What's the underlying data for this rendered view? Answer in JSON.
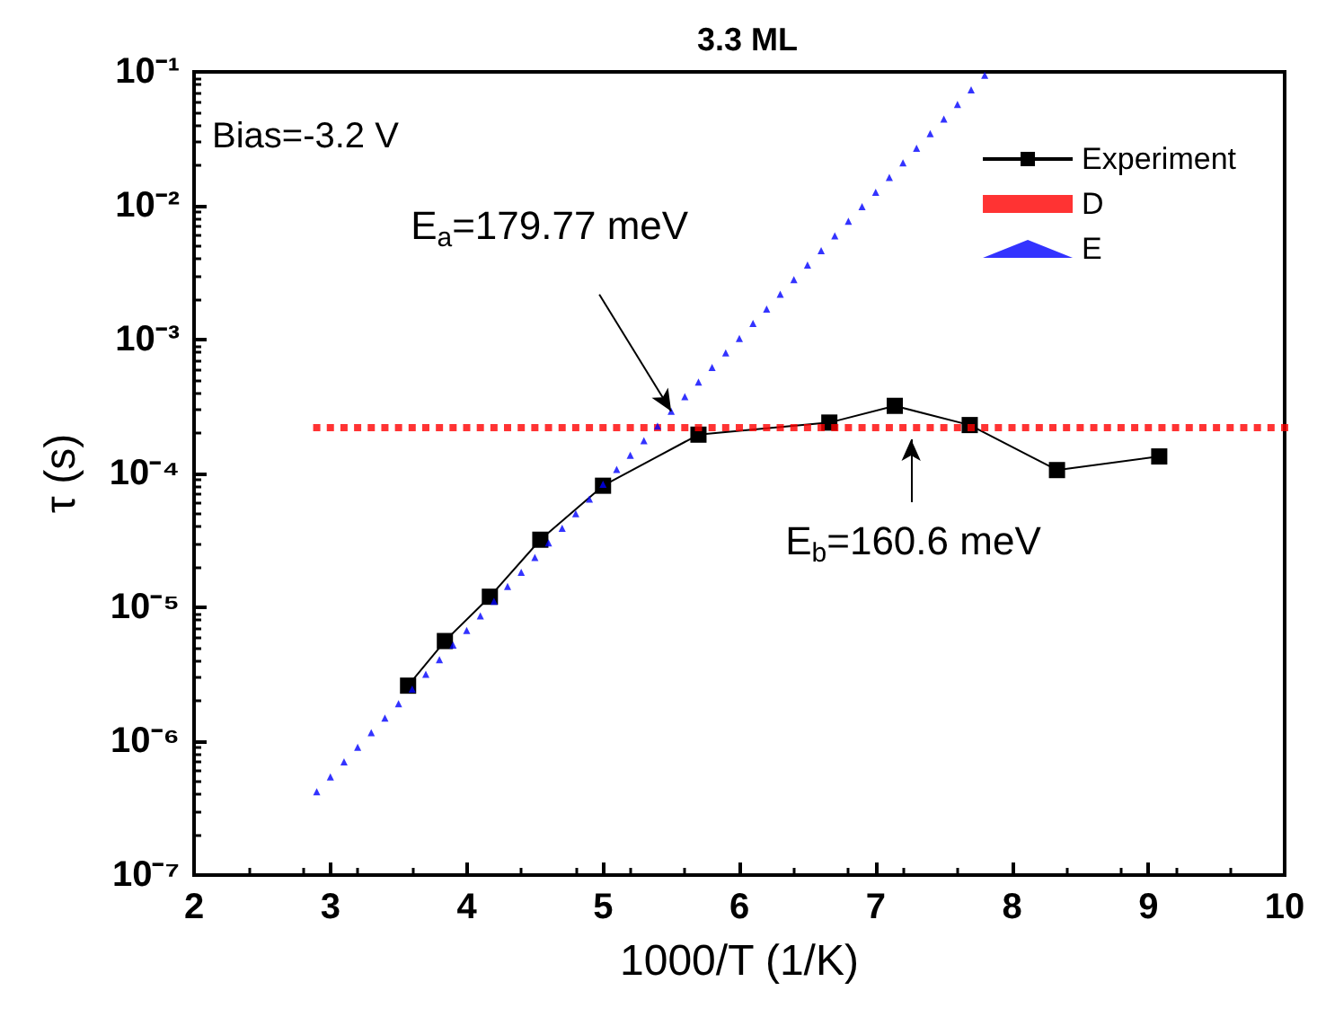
{
  "chart_data": {
    "type": "scatter",
    "title": "3.3 ML",
    "xlabel": "1000/T (1/K)",
    "ylabel": "τ (s)",
    "xlim": [
      2,
      10
    ],
    "xticks": [
      2,
      3,
      4,
      5,
      6,
      7,
      8,
      9,
      10
    ],
    "ylim": [
      1e-07,
      0.1
    ],
    "log": "y",
    "yticks": [
      {
        "value": 1e-07,
        "label": "10⁻⁷"
      },
      {
        "value": 1e-06,
        "label": "10⁻⁶"
      },
      {
        "value": 1e-05,
        "label": "10⁻⁵"
      },
      {
        "value": 0.0001,
        "label": "10⁻⁴"
      },
      {
        "value": 0.001,
        "label": "10⁻³"
      },
      {
        "value": 0.01,
        "label": "10⁻²"
      },
      {
        "value": 0.1,
        "label": "10⁻¹"
      }
    ],
    "grid": false,
    "legend": "top right",
    "annotations": [
      "Bias=-3.2 V",
      {
        "text": "E$_{a}$=179.77 meV",
        "x": 5.5,
        "y": 0.000292
      },
      {
        "text": "E$_{b}$=160.6 meV",
        "x": 7.26,
        "y": 0.00018
      }
    ],
    "series": [
      {
        "name": "Experiment",
        "type": "line",
        "marker": "square",
        "color": "#000000",
        "x": [
          3.57,
          3.84,
          4.17,
          4.54,
          5.0,
          5.7,
          6.66,
          7.14,
          7.69,
          8.33,
          9.08
        ],
        "values": [
          2.6e-06,
          5.6e-06,
          1.2e-05,
          3.2e-05,
          8.1e-05,
          0.000195,
          0.00024,
          0.00032,
          0.00023,
          0.000106,
          0.000134
        ]
      },
      {
        "name": "D",
        "marker": "square",
        "color": "#ff0000",
        "x": [
          2.9,
          3.0,
          3.1,
          3.2,
          3.3,
          3.4,
          3.5,
          3.6,
          3.7,
          3.8,
          3.9,
          4.0,
          4.1,
          4.2,
          4.3,
          4.4,
          4.5,
          4.6,
          4.7,
          4.8,
          4.9,
          5.0,
          5.1,
          5.2,
          5.3,
          5.4,
          5.5,
          5.6,
          5.7,
          5.8,
          5.9,
          6.0,
          6.1,
          6.2,
          6.3,
          6.4,
          6.5,
          6.6,
          6.7,
          6.8,
          6.9,
          7.0,
          7.1,
          7.2,
          7.3,
          7.4,
          7.5,
          7.6,
          7.7,
          7.8,
          7.9,
          8.0,
          8.1,
          8.2,
          8.3,
          8.4,
          8.5,
          8.6,
          8.7,
          8.8,
          8.9,
          9.0,
          9.1,
          9.2,
          9.3,
          9.4,
          9.5,
          9.6,
          9.7,
          9.8,
          9.9,
          10.0
        ],
        "values": [
          0.00022,
          0.00022,
          0.00022,
          0.00022,
          0.00022,
          0.00022,
          0.00022,
          0.00022,
          0.00022,
          0.00022,
          0.00022,
          0.00022,
          0.00022,
          0.00022,
          0.00022,
          0.00022,
          0.00022,
          0.00022,
          0.00022,
          0.00022,
          0.00022,
          0.00022,
          0.00022,
          0.00022,
          0.00022,
          0.00022,
          0.00022,
          0.00022,
          0.00022,
          0.00022,
          0.00022,
          0.00022,
          0.00022,
          0.00022,
          0.00022,
          0.00022,
          0.00022,
          0.00022,
          0.00022,
          0.00022,
          0.00022,
          0.00022,
          0.00022,
          0.00022,
          0.00022,
          0.00022,
          0.00022,
          0.00022,
          0.00022,
          0.00022,
          0.00022,
          0.00022,
          0.00022,
          0.00022,
          0.00022,
          0.00022,
          0.00022,
          0.00022,
          0.00022,
          0.00022,
          0.00022,
          0.00022,
          0.00022,
          0.00022,
          0.00022,
          0.00022,
          0.00022,
          0.00022,
          0.00022,
          0.00022,
          0.00022,
          0.00022
        ]
      },
      {
        "name": "E",
        "marker": "triangle",
        "color": "#0000ff",
        "x": [
          2.9,
          3.0,
          3.1,
          3.2,
          3.3,
          3.4,
          3.5,
          3.6,
          3.7,
          3.8,
          3.9,
          4.0,
          4.1,
          4.2,
          4.3,
          4.4,
          4.5,
          4.6,
          4.7,
          4.8,
          4.9,
          5.0,
          5.1,
          5.2,
          5.3,
          5.4,
          5.5,
          5.6,
          5.7,
          5.8,
          5.9,
          6.0,
          6.1,
          6.2,
          6.3,
          6.4,
          6.5,
          6.6,
          6.7,
          6.8,
          6.9,
          7.0,
          7.1,
          7.2,
          7.3,
          7.4,
          7.5,
          7.6,
          7.7,
          7.8
        ],
        "values": [
          4.2e-07,
          5.4e-07,
          7e-07,
          9e-07,
          1.16e-06,
          1.49e-06,
          1.91e-06,
          2.45e-06,
          3.16e-06,
          4.06e-06,
          5.22e-06,
          6.71e-06,
          8.63e-06,
          1.11e-05,
          1.43e-05,
          1.83e-05,
          2.36e-05,
          3.03e-05,
          3.9e-05,
          5.01e-05,
          6.45e-05,
          8.3e-05,
          0.000107,
          0.000137,
          0.000176,
          0.000226,
          0.000292,
          0.000375,
          0.000482,
          0.000619,
          0.000796,
          0.00102,
          0.00132,
          0.00169,
          0.00218,
          0.0028,
          0.0036,
          0.00462,
          0.00596,
          0.00766,
          0.00984,
          0.0126,
          0.0163,
          0.0209,
          0.0269,
          0.0346,
          0.0445,
          0.0571,
          0.0735,
          0.0944
        ]
      }
    ]
  }
}
